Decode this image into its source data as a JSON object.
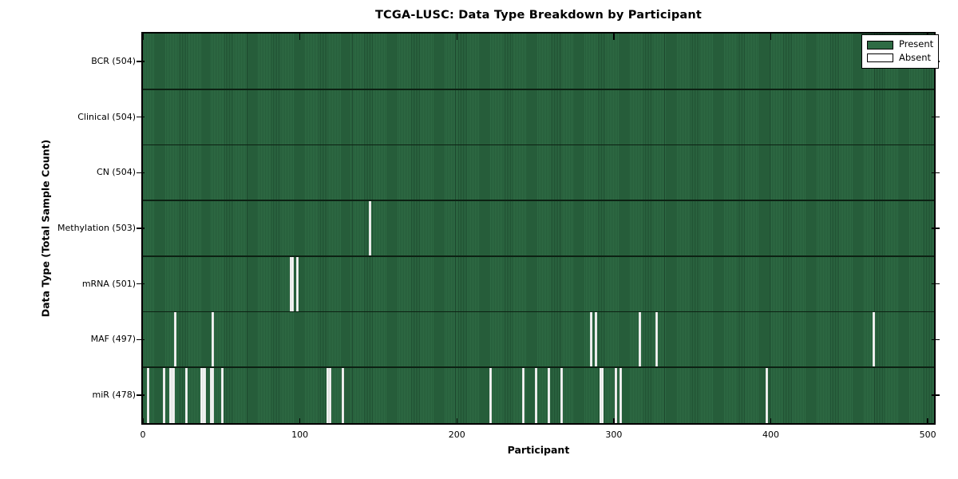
{
  "title": "TCGA-LUSC: Data Type Breakdown by Participant",
  "xlabel": "Participant",
  "ylabel": "Data Type (Total Sample Count)",
  "legend": {
    "present_label": "Present",
    "absent_label": "Absent"
  },
  "colors": {
    "present": "#2e6b44",
    "present_stripe": "#1f4f31",
    "absent": "#fafafa",
    "row_divider": "#0c2113",
    "plot_border": "#000000"
  },
  "chart_data": {
    "type": "heatmap",
    "title": "TCGA-LUSC: Data Type Breakdown by Participant",
    "xlabel": "Participant",
    "ylabel": "Data Type (Total Sample Count)",
    "legend_entries": [
      "Present",
      "Absent"
    ],
    "legend_position": "upper right",
    "n_participants": 504,
    "x_axis": {
      "min": 0,
      "max": 504,
      "ticks": [
        0,
        100,
        200,
        300,
        400,
        500
      ]
    },
    "rows": [
      {
        "label": "BCR (504)",
        "total": 504,
        "absent_participants": []
      },
      {
        "label": "Clinical (504)",
        "total": 504,
        "absent_participants": []
      },
      {
        "label": "CN (504)",
        "total": 504,
        "absent_participants": []
      },
      {
        "label": "Methylation (503)",
        "total": 503,
        "absent_participants": [
          144
        ]
      },
      {
        "label": "mRNA (501)",
        "total": 501,
        "absent_participants": [
          94,
          95,
          98
        ]
      },
      {
        "label": "MAF (497)",
        "total": 497,
        "absent_participants": [
          20,
          44,
          285,
          288,
          316,
          327,
          465
        ]
      },
      {
        "label": "miR (478)",
        "total": 478,
        "absent_participants": [
          3,
          13,
          17,
          18,
          19,
          27,
          37,
          38,
          39,
          43,
          44,
          50,
          117,
          118,
          119,
          127,
          221,
          242,
          250,
          258,
          266,
          291,
          292,
          301,
          304,
          397
        ]
      }
    ]
  }
}
